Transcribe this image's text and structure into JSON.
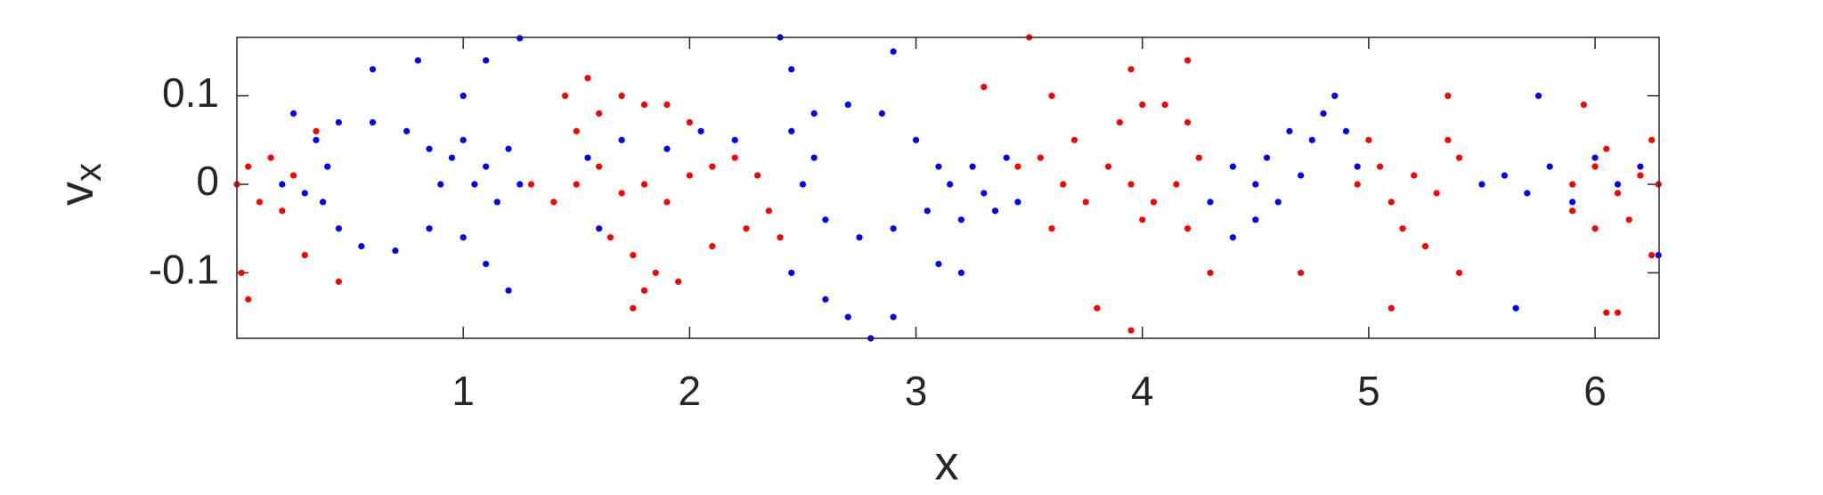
{
  "chart_data": {
    "type": "scatter",
    "xlabel": "x",
    "ylabel": {
      "main": "v",
      "sub": "x"
    },
    "xlim": [
      0,
      6.283
    ],
    "ylim": [
      -0.174,
      0.166
    ],
    "xticks": [
      1,
      2,
      3,
      4,
      5,
      6
    ],
    "yticks": [
      -0.1,
      0,
      0.1
    ],
    "series": [
      {
        "color": "#0000ff",
        "x": [
          0.35,
          0.45,
          0.6,
          0.75,
          0.85,
          0.9,
          0.85,
          0.7,
          0.55,
          0.45,
          0.38,
          0.4,
          0.95,
          1.0,
          1.05,
          1.1,
          1.15,
          1.2,
          1.25,
          1.0,
          1.1,
          1.2,
          1.0,
          0.8,
          0.6,
          1.1,
          0.25,
          0.3,
          0.2,
          1.25,
          1.55,
          1.7,
          1.9,
          2.05,
          2.2,
          1.6,
          2.45,
          2.55,
          2.7,
          2.85,
          3.0,
          3.1,
          3.05,
          2.9,
          2.75,
          2.6,
          2.5,
          2.55,
          2.45,
          2.6,
          2.7,
          2.8,
          2.9,
          3.1,
          3.2,
          2.4,
          2.45,
          2.9,
          3.15,
          3.25,
          3.3,
          3.4,
          3.45,
          3.35,
          3.2,
          4.3,
          4.4,
          4.5,
          4.55,
          4.6,
          4.7,
          4.75,
          4.8,
          4.85,
          4.9,
          4.65,
          4.5,
          4.4,
          4.95,
          5.5,
          5.6,
          5.7,
          5.8,
          5.9,
          6.0,
          6.1,
          6.2,
          6.28,
          5.65,
          5.75
        ],
        "values": [
          0.05,
          0.07,
          0.07,
          0.06,
          0.04,
          0.0,
          -0.05,
          -0.075,
          -0.07,
          -0.05,
          -0.02,
          0.02,
          0.03,
          0.05,
          0.0,
          0.02,
          -0.02,
          0.04,
          0.0,
          -0.06,
          -0.09,
          -0.12,
          0.1,
          0.14,
          0.13,
          0.14,
          0.08,
          -0.01,
          0.0,
          0.165,
          0.03,
          0.05,
          0.04,
          0.06,
          0.05,
          -0.05,
          0.06,
          0.08,
          0.09,
          0.08,
          0.05,
          0.02,
          -0.03,
          -0.05,
          -0.06,
          -0.04,
          0.0,
          0.03,
          -0.1,
          -0.13,
          -0.15,
          -0.174,
          -0.15,
          -0.09,
          -0.1,
          0.166,
          0.13,
          0.15,
          0.0,
          0.02,
          -0.01,
          0.03,
          -0.02,
          -0.03,
          -0.04,
          -0.02,
          0.02,
          0.0,
          0.03,
          -0.02,
          0.01,
          0.05,
          0.08,
          0.1,
          0.06,
          0.06,
          -0.04,
          -0.06,
          0.02,
          0.0,
          0.01,
          -0.01,
          0.02,
          -0.02,
          0.03,
          0.0,
          0.02,
          -0.08,
          -0.14,
          0.1
        ]
      },
      {
        "color": "#ff0000",
        "x": [
          0.0,
          0.05,
          0.1,
          0.15,
          0.2,
          0.25,
          0.02,
          0.05,
          0.3,
          0.45,
          0.35,
          1.3,
          1.4,
          1.5,
          1.6,
          1.7,
          1.8,
          1.9,
          2.0,
          2.1,
          2.2,
          2.3,
          2.35,
          1.6,
          1.7,
          1.8,
          1.9,
          2.0,
          1.5,
          1.45,
          1.65,
          1.75,
          1.85,
          1.8,
          1.95,
          2.1,
          2.25,
          2.4,
          1.75,
          1.55,
          3.45,
          3.55,
          3.65,
          3.75,
          3.85,
          3.95,
          4.0,
          3.6,
          3.7,
          3.9,
          4.0,
          4.1,
          4.2,
          4.25,
          4.15,
          4.05,
          4.2,
          3.6,
          3.5,
          3.95,
          4.2,
          3.8,
          3.95,
          4.3,
          3.3,
          4.95,
          5.05,
          5.1,
          5.2,
          5.3,
          5.4,
          5.0,
          5.15,
          5.25,
          5.35,
          5.1,
          5.4,
          5.35,
          4.7,
          5.9,
          6.0,
          6.1,
          6.2,
          6.28,
          6.05,
          6.15,
          6.0,
          5.9,
          6.25,
          6.05,
          6.1,
          5.95,
          6.25
        ],
        "values": [
          0.0,
          0.02,
          -0.02,
          0.03,
          -0.03,
          0.01,
          -0.1,
          -0.13,
          -0.08,
          -0.11,
          0.06,
          0.0,
          -0.02,
          0.0,
          0.02,
          -0.01,
          0.0,
          -0.02,
          0.01,
          0.02,
          0.03,
          0.01,
          -0.03,
          0.08,
          0.1,
          0.09,
          0.09,
          0.07,
          0.06,
          0.1,
          -0.06,
          -0.08,
          -0.1,
          -0.12,
          -0.11,
          -0.07,
          -0.05,
          -0.06,
          -0.14,
          0.12,
          0.02,
          0.03,
          0.0,
          -0.02,
          0.02,
          0.0,
          -0.04,
          -0.05,
          0.05,
          0.07,
          0.09,
          0.09,
          0.07,
          0.03,
          0.0,
          -0.02,
          -0.05,
          0.1,
          0.166,
          0.13,
          0.14,
          -0.14,
          -0.165,
          -0.1,
          0.11,
          0.0,
          0.02,
          -0.02,
          0.01,
          -0.01,
          0.03,
          0.05,
          -0.05,
          -0.07,
          0.05,
          -0.14,
          -0.1,
          0.1,
          -0.1,
          0.0,
          0.02,
          -0.01,
          0.01,
          0.0,
          0.04,
          -0.04,
          -0.05,
          -0.03,
          0.05,
          -0.145,
          -0.145,
          0.09,
          -0.08
        ]
      }
    ]
  }
}
